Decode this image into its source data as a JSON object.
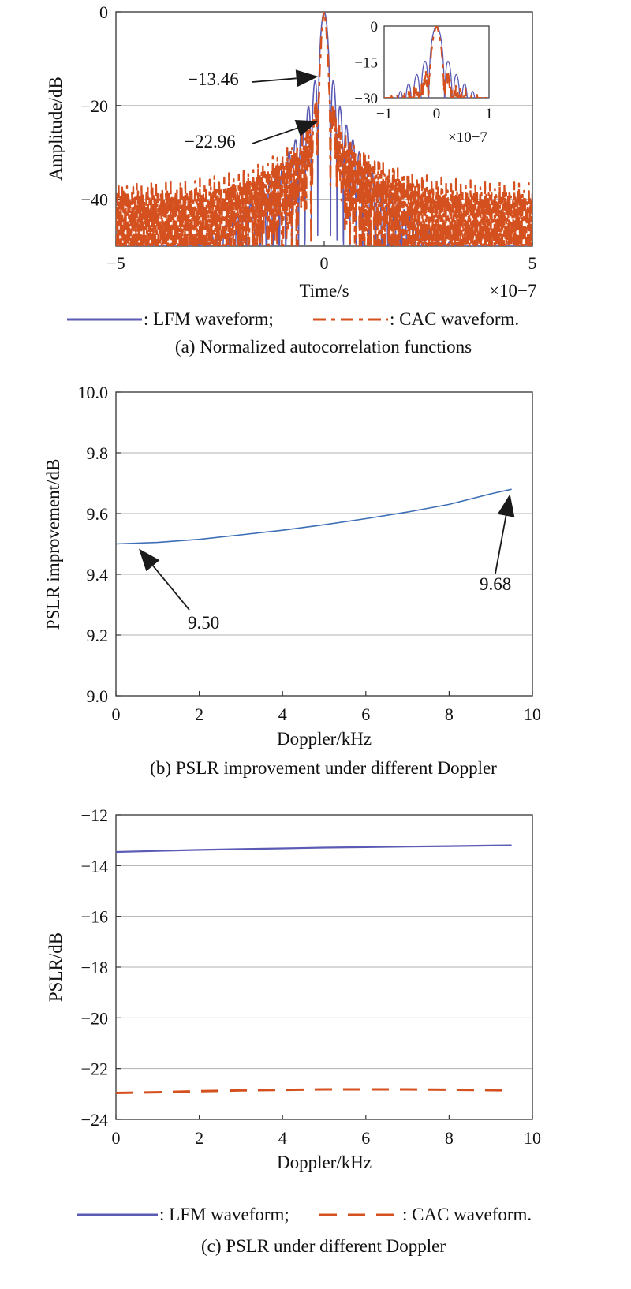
{
  "colors": {
    "lfm": "#5b5bb5",
    "cac": "#d4501e",
    "grid": "#b0b0b0",
    "axis": "#333333",
    "annotation": "#1a1a1a"
  },
  "chart_data": [
    {
      "id": "a",
      "type": "line",
      "caption": "(a) Normalized autocorrelation functions",
      "xlabel": "Time/s",
      "ylabel": "Amplitude/dB",
      "x_exponent_label": "×10−7",
      "xlim": [
        -5,
        5
      ],
      "ylim": [
        -50,
        0
      ],
      "xticks": [
        -5,
        0,
        5
      ],
      "xtick_labels": [
        "−5",
        "0",
        "5"
      ],
      "yticks": [
        0,
        -20,
        -40
      ],
      "ytick_labels": [
        "0",
        "−20",
        "−40"
      ],
      "grid": "horizontal",
      "series": [
        {
          "name": "LFM waveform",
          "color": "#5b5bb5",
          "style": "solid",
          "peak_sidelobe_db": -13.46
        },
        {
          "name": "CAC waveform",
          "color": "#d4501e",
          "style": "dashdot",
          "peak_sidelobe_db": -22.96
        }
      ],
      "annotations": [
        {
          "text": "−13.46",
          "x": 0.05,
          "y": -13.46
        },
        {
          "text": "−22.96",
          "x": 0.05,
          "y": -22.96
        }
      ],
      "inset": {
        "xlim": [
          -1,
          1
        ],
        "ylim": [
          -30,
          0
        ],
        "xticks": [
          -1,
          0,
          1
        ],
        "xtick_labels": [
          "−1",
          "0",
          "1"
        ],
        "yticks": [
          0,
          -15,
          -30
        ],
        "ytick_labels": [
          "0",
          "−15",
          "−30"
        ],
        "x_exponent_label": "×10−7"
      },
      "legend": {
        "position": "bottom",
        "items": [
          {
            "label": ": LFM waveform;",
            "color": "#5b5bb5",
            "style": "solid"
          },
          {
            "label": ": CAC waveform.",
            "color": "#d4501e",
            "style": "dashdot"
          }
        ]
      }
    },
    {
      "id": "b",
      "type": "line",
      "caption": "(b) PSLR improvement under different Doppler",
      "xlabel": "Doppler/kHz",
      "ylabel": "PSLR improvement/dB",
      "xlim": [
        0,
        10
      ],
      "ylim": [
        9.0,
        10.0
      ],
      "xticks": [
        0,
        2,
        4,
        6,
        8,
        10
      ],
      "xtick_labels": [
        "0",
        "2",
        "4",
        "6",
        "8",
        "10"
      ],
      "yticks": [
        9.0,
        9.2,
        9.4,
        9.6,
        9.8,
        10.0
      ],
      "ytick_labels": [
        "9.0",
        "9.2",
        "9.4",
        "9.6",
        "9.8",
        "10.0"
      ],
      "grid": "horizontal",
      "series": [
        {
          "color": "#3d6fb6",
          "x": [
            0,
            1,
            2,
            3,
            4,
            5,
            6,
            7,
            8,
            9,
            9.5
          ],
          "y": [
            9.5,
            9.505,
            9.515,
            9.53,
            9.545,
            9.563,
            9.583,
            9.605,
            9.63,
            9.665,
            9.68
          ]
        }
      ],
      "annotations": [
        {
          "text": "9.50",
          "x": 0.5,
          "y": 9.5
        },
        {
          "text": "9.68",
          "x": 9.5,
          "y": 9.68
        }
      ]
    },
    {
      "id": "c",
      "type": "line",
      "caption": "(c) PSLR under different Doppler",
      "xlabel": "Doppler/kHz",
      "ylabel": "PSLR/dB",
      "xlim": [
        0,
        10
      ],
      "ylim": [
        -24,
        -12
      ],
      "xticks": [
        0,
        2,
        4,
        6,
        8,
        10
      ],
      "xtick_labels": [
        "0",
        "2",
        "4",
        "6",
        "8",
        "10"
      ],
      "yticks": [
        -12,
        -14,
        -16,
        -18,
        -20,
        -22,
        -24
      ],
      "ytick_labels": [
        "−12",
        "−14",
        "−16",
        "−18",
        "−20",
        "−22",
        "−24"
      ],
      "grid": "horizontal",
      "series": [
        {
          "name": "LFM waveform",
          "color": "#5b5bb5",
          "style": "solid",
          "x": [
            0,
            1,
            2,
            3,
            4,
            5,
            6,
            7,
            8,
            9,
            9.5
          ],
          "y": [
            -13.46,
            -13.42,
            -13.38,
            -13.35,
            -13.32,
            -13.29,
            -13.27,
            -13.25,
            -13.23,
            -13.21,
            -13.2
          ]
        },
        {
          "name": "CAC waveform",
          "color": "#d4501e",
          "style": "dashed",
          "x": [
            0,
            1,
            2,
            3,
            4,
            5,
            6,
            7,
            8,
            9,
            9.5
          ],
          "y": [
            -22.96,
            -22.93,
            -22.89,
            -22.86,
            -22.84,
            -22.82,
            -22.82,
            -22.82,
            -22.83,
            -22.85,
            -22.86
          ]
        }
      ],
      "legend": {
        "position": "bottom",
        "items": [
          {
            "label": ": LFM waveform;",
            "color": "#5b5bb5",
            "style": "solid"
          },
          {
            "label": ": CAC waveform.",
            "color": "#d4501e",
            "style": "dashed"
          }
        ]
      }
    }
  ]
}
